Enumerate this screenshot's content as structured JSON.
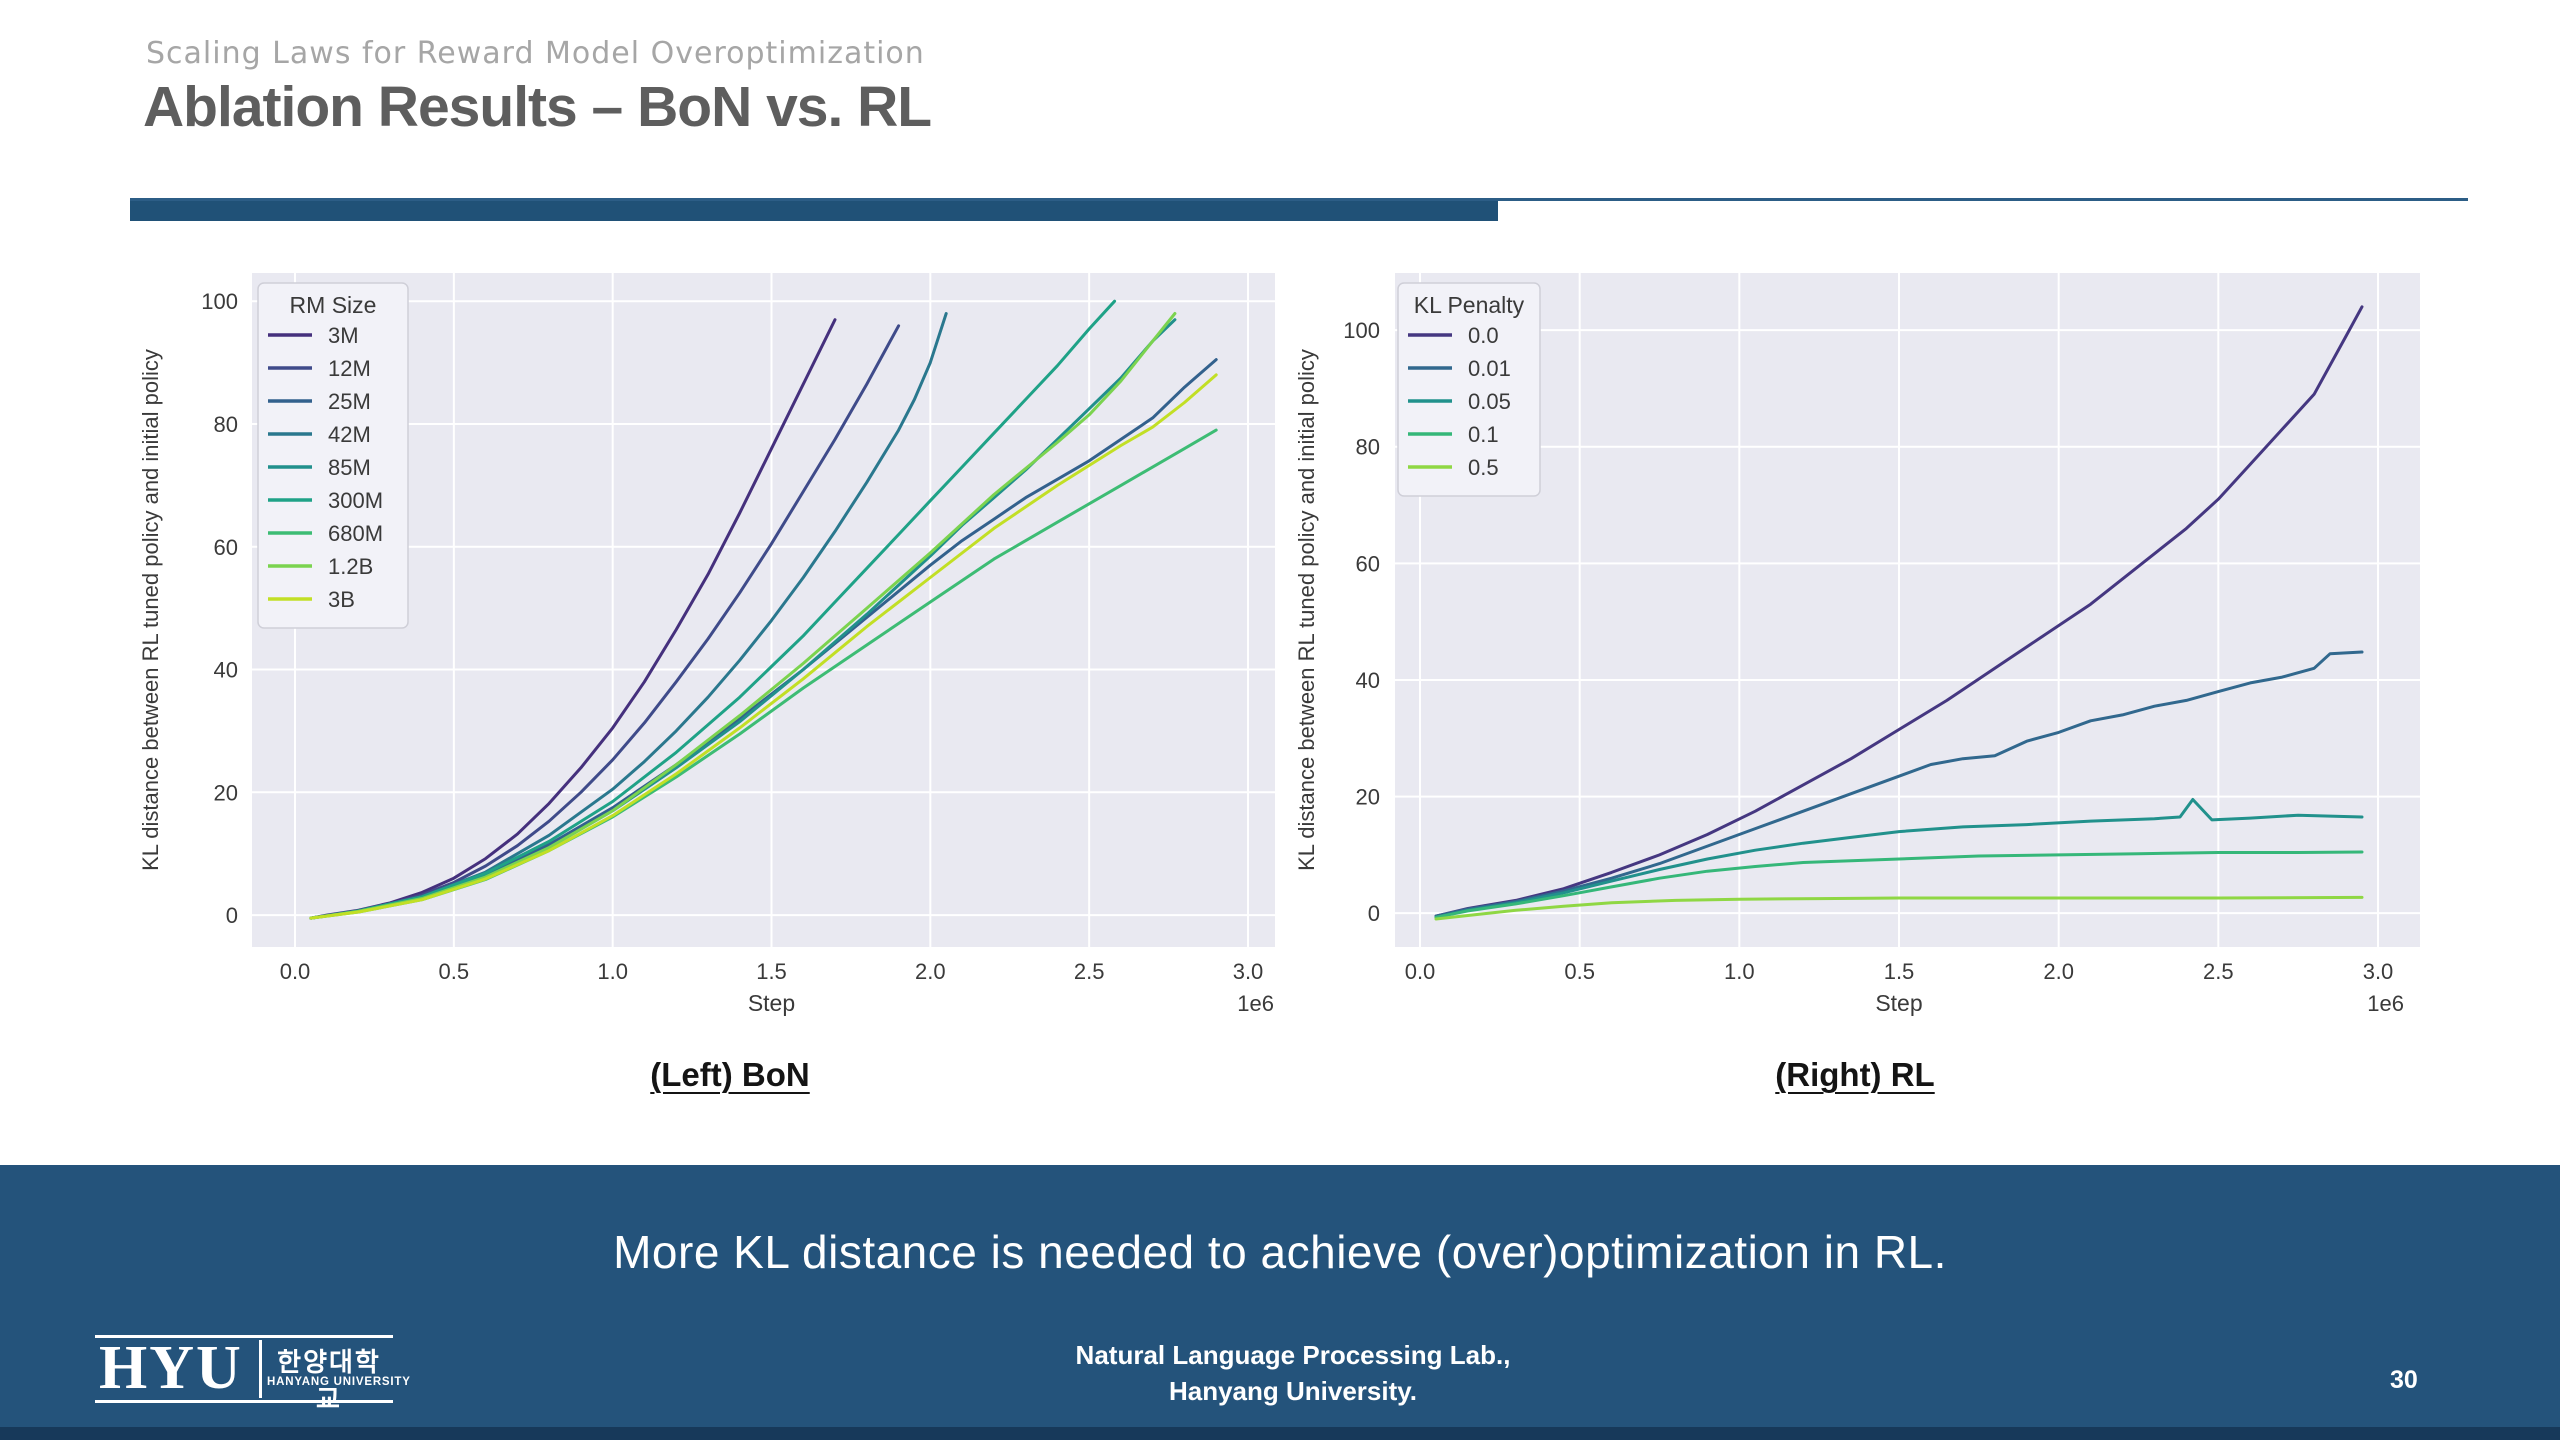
{
  "slide": {
    "kicker": "Scaling Laws for Reward Model Overoptimization",
    "title": "Ablation Results – BoN vs. RL"
  },
  "captions": {
    "left_chart": "(Left) BoN",
    "right_chart": "(Right) RL"
  },
  "banner": {
    "message": "More KL distance is needed to achieve (over)optimization in RL."
  },
  "footer": {
    "logo_acronym": "HYU",
    "logo_korean": "한양대학교",
    "logo_university": "HANYANG UNIVERSITY",
    "lab_line1": "Natural Language Processing Lab.,",
    "lab_line2": "Hanyang University.",
    "page_number": "30"
  },
  "colors": {
    "accent_bar": "#205177",
    "banner_bg": "#24537b",
    "banner_bottom_strip": "#17395a",
    "plot_bg": "#e9e9f1",
    "grid": "#ffffff",
    "tick_text": "#3a3a3a"
  },
  "chart_data": [
    {
      "type": "line",
      "title": "",
      "xlabel": "Step",
      "ylabel": "KL distance between RL tuned policy and initial policy",
      "x_offset_label": "1e6",
      "xlim": [
        0,
        3
      ],
      "ylim": [
        0,
        100
      ],
      "grid": true,
      "legend_title": "RM Size",
      "legend_position": "upper left",
      "xticks": [
        "0.0",
        "0.5",
        "1.0",
        "1.5",
        "2.0",
        "2.5",
        "3.0"
      ],
      "yticks": [
        0,
        20,
        40,
        60,
        80,
        100
      ],
      "series": [
        {
          "name": "3M",
          "color": "#45307d",
          "x": [
            0.05,
            0.1,
            0.2,
            0.3,
            0.4,
            0.5,
            0.6,
            0.7,
            0.8,
            0.9,
            1.0,
            1.1,
            1.2,
            1.3,
            1.4,
            1.5,
            1.6,
            1.7
          ],
          "y": [
            -0.5,
            0,
            0.8,
            2,
            3.7,
            6,
            9.2,
            13.2,
            18.2,
            24,
            30.5,
            38,
            46.5,
            55.5,
            65.5,
            76,
            86.5,
            97
          ]
        },
        {
          "name": "12M",
          "color": "#3f4b8a",
          "x": [
            0.05,
            0.1,
            0.2,
            0.3,
            0.4,
            0.5,
            0.6,
            0.7,
            0.8,
            0.9,
            1.0,
            1.1,
            1.2,
            1.3,
            1.4,
            1.5,
            1.6,
            1.7,
            1.8,
            1.9
          ],
          "y": [
            -0.5,
            -0.1,
            0.7,
            1.8,
            3.3,
            5.3,
            8,
            11.3,
            15.3,
            20,
            25.3,
            31.3,
            38,
            45,
            52.5,
            60.5,
            69,
            77.5,
            86.5,
            96
          ]
        },
        {
          "name": "25M",
          "color": "#33618d",
          "x": [
            0.05,
            0.2,
            0.4,
            0.6,
            0.8,
            1.0,
            1.2,
            1.4,
            1.6,
            1.8,
            2.0,
            2.1,
            2.2,
            2.3,
            2.4,
            2.5,
            2.6,
            2.7,
            2.8,
            2.9
          ],
          "y": [
            -0.5,
            0.6,
            2.8,
            6.5,
            11.5,
            17.5,
            24.5,
            32,
            40,
            48.5,
            57,
            61,
            64.5,
            68,
            71,
            74,
            77.5,
            81,
            86,
            90.5
          ]
        },
        {
          "name": "42M",
          "color": "#2a788e",
          "x": [
            0.05,
            0.2,
            0.4,
            0.6,
            0.8,
            1.0,
            1.1,
            1.2,
            1.3,
            1.4,
            1.5,
            1.6,
            1.7,
            1.8,
            1.9,
            1.95,
            2.0,
            2.05
          ],
          "y": [
            -0.5,
            0.7,
            3,
            7,
            13,
            20.5,
            25,
            30,
            35.5,
            41.5,
            48,
            55,
            62.5,
            70.5,
            79,
            84,
            90,
            98
          ]
        },
        {
          "name": "85M",
          "color": "#21908c",
          "x": [
            0.05,
            0.2,
            0.4,
            0.6,
            0.8,
            1.0,
            1.2,
            1.4,
            1.6,
            1.8,
            2.0,
            2.1,
            2.2,
            2.3,
            2.4,
            2.5,
            2.6,
            2.7,
            2.77
          ],
          "y": [
            -0.5,
            0.6,
            2.8,
            6.3,
            11,
            17,
            24,
            31.5,
            40,
            49,
            58.5,
            63.5,
            68,
            72.5,
            77.5,
            82.5,
            87.5,
            93.5,
            97
          ]
        },
        {
          "name": "300M",
          "color": "#1fa287",
          "x": [
            0.05,
            0.2,
            0.4,
            0.6,
            0.8,
            1.0,
            1.2,
            1.4,
            1.5,
            1.6,
            1.7,
            1.8,
            1.9,
            2.0,
            2.1,
            2.2,
            2.3,
            2.4,
            2.5,
            2.58
          ],
          "y": [
            -0.5,
            0.7,
            3,
            6.8,
            12,
            18.5,
            26.5,
            35.5,
            40.5,
            45.5,
            51,
            56.5,
            62,
            67.5,
            73,
            78.5,
            84,
            89.5,
            95.5,
            100
          ]
        },
        {
          "name": "680M",
          "color": "#3dbc74",
          "x": [
            0.05,
            0.2,
            0.4,
            0.6,
            0.8,
            1.0,
            1.2,
            1.4,
            1.6,
            1.8,
            2.0,
            2.2,
            2.4,
            2.6,
            2.8,
            2.9
          ],
          "y": [
            -0.5,
            0.5,
            2.5,
            5.8,
            10.5,
            16,
            22.5,
            29.5,
            37,
            44,
            51,
            58,
            64,
            70,
            76,
            79
          ]
        },
        {
          "name": "1.2B",
          "color": "#7bd34f",
          "x": [
            0.05,
            0.2,
            0.4,
            0.6,
            0.8,
            1.0,
            1.2,
            1.4,
            1.6,
            1.8,
            2.0,
            2.2,
            2.4,
            2.5,
            2.6,
            2.7,
            2.77
          ],
          "y": [
            -0.5,
            0.6,
            2.7,
            6.2,
            11,
            17,
            24.5,
            32.5,
            41,
            50,
            59,
            68.5,
            77,
            81.5,
            87,
            93.5,
            98
          ]
        },
        {
          "name": "3B",
          "color": "#c2df25",
          "x": [
            0.05,
            0.2,
            0.4,
            0.6,
            0.8,
            1.0,
            1.2,
            1.4,
            1.6,
            1.8,
            2.0,
            2.2,
            2.4,
            2.6,
            2.7,
            2.8,
            2.9
          ],
          "y": [
            -0.5,
            0.5,
            2.5,
            5.9,
            10.5,
            16.2,
            23,
            30.5,
            38.5,
            47,
            55,
            63,
            70,
            76.5,
            79.5,
            83.5,
            88
          ]
        }
      ]
    },
    {
      "type": "line",
      "title": "",
      "xlabel": "Step",
      "ylabel": "KL distance between RL tuned policy and initial policy",
      "x_offset_label": "1e6",
      "xlim": [
        0,
        3
      ],
      "ylim": [
        0,
        100
      ],
      "grid": true,
      "legend_title": "KL Penalty",
      "legend_position": "upper left",
      "xticks": [
        "0.0",
        "0.5",
        "1.0",
        "1.5",
        "2.0",
        "2.5",
        "3.0"
      ],
      "yticks": [
        0,
        20,
        40,
        60,
        80,
        100
      ],
      "series": [
        {
          "name": "0.0",
          "color": "#453781",
          "x": [
            0.05,
            0.15,
            0.3,
            0.45,
            0.6,
            0.75,
            0.9,
            1.05,
            1.2,
            1.35,
            1.5,
            1.65,
            1.8,
            1.95,
            2.1,
            2.25,
            2.4,
            2.5,
            2.6,
            2.7,
            2.8,
            2.9,
            2.95
          ],
          "y": [
            -0.5,
            0.8,
            2.2,
            4.2,
            7,
            10,
            13.5,
            17.5,
            22,
            26.5,
            31.5,
            36.5,
            42,
            47.5,
            53,
            59.5,
            66,
            71,
            77,
            83,
            89,
            99,
            104
          ]
        },
        {
          "name": "0.01",
          "color": "#31688e",
          "x": [
            0.05,
            0.15,
            0.3,
            0.45,
            0.6,
            0.75,
            0.9,
            1.05,
            1.2,
            1.35,
            1.5,
            1.6,
            1.7,
            1.8,
            1.9,
            2.0,
            2.1,
            2.2,
            2.3,
            2.4,
            2.5,
            2.6,
            2.7,
            2.8,
            2.85,
            2.95
          ],
          "y": [
            -0.5,
            0.7,
            2,
            3.8,
            6,
            8.5,
            11.5,
            14.5,
            17.5,
            20.5,
            23.5,
            25.5,
            26.5,
            27,
            29.5,
            31,
            33,
            34,
            35.5,
            36.5,
            38,
            39.5,
            40.5,
            42,
            44.5,
            44.8
          ]
        },
        {
          "name": "0.05",
          "color": "#21918c",
          "x": [
            0.05,
            0.15,
            0.3,
            0.45,
            0.6,
            0.75,
            0.9,
            1.05,
            1.2,
            1.35,
            1.5,
            1.7,
            1.9,
            2.1,
            2.3,
            2.38,
            2.42,
            2.48,
            2.6,
            2.75,
            2.95
          ],
          "y": [
            -0.7,
            0.5,
            1.8,
            3.5,
            5.5,
            7.5,
            9.3,
            10.8,
            12,
            13,
            14,
            14.8,
            15.2,
            15.8,
            16.2,
            16.5,
            19.5,
            16,
            16.3,
            16.8,
            16.5
          ]
        },
        {
          "name": "0.1",
          "color": "#35b779",
          "x": [
            0.05,
            0.15,
            0.3,
            0.45,
            0.6,
            0.75,
            0.9,
            1.05,
            1.2,
            1.35,
            1.5,
            1.75,
            2.0,
            2.25,
            2.5,
            2.75,
            2.95
          ],
          "y": [
            -0.7,
            0.4,
            1.6,
            3,
            4.5,
            6,
            7.2,
            8,
            8.7,
            9,
            9.3,
            9.8,
            10,
            10.2,
            10.4,
            10.4,
            10.5
          ]
        },
        {
          "name": "0.5",
          "color": "#8fd744",
          "x": [
            0.05,
            0.15,
            0.3,
            0.45,
            0.6,
            0.8,
            1.0,
            1.25,
            1.5,
            2.0,
            2.5,
            2.95
          ],
          "y": [
            -1,
            -0.4,
            0.5,
            1.2,
            1.8,
            2.2,
            2.4,
            2.5,
            2.6,
            2.6,
            2.6,
            2.7
          ]
        }
      ]
    }
  ]
}
